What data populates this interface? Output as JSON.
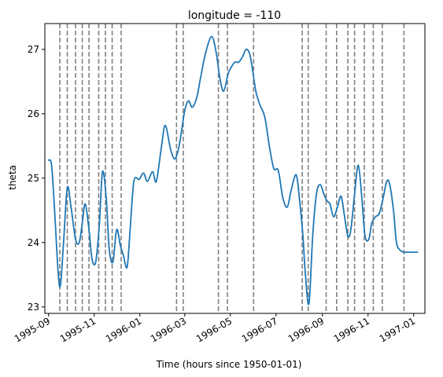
{
  "chart_data": {
    "type": "line",
    "title": "longitude = -110",
    "xlabel": "Time (hours since 1950-01-01)",
    "ylabel": "theta",
    "xlim": [
      "1995-08-27",
      "1997-01-16"
    ],
    "ylim": [
      22.9,
      27.4
    ],
    "grid": false,
    "legend": "none",
    "colors": {
      "line": "#1f77b4",
      "vlines": "#808080"
    },
    "x_ticks": [
      "1995-09",
      "1995-11",
      "1996-01",
      "1996-03",
      "1996-05",
      "1996-07",
      "1996-09",
      "1996-11",
      "1997-01"
    ],
    "x_tick_dates": [
      "1995-09-01",
      "1995-11-01",
      "1996-01-01",
      "1996-03-01",
      "1996-05-01",
      "1996-07-01",
      "1996-09-01",
      "1996-11-01",
      "1997-01-01"
    ],
    "y_ticks": [
      23,
      24,
      25,
      26,
      27
    ],
    "vertical_lines": [
      "1995-09-16",
      "1995-09-26",
      "1995-10-07",
      "1995-10-16",
      "1995-10-25",
      "1995-11-07",
      "1995-11-16",
      "1995-11-25",
      "1995-12-07",
      "1996-02-19",
      "1996-02-28",
      "1996-04-15",
      "1996-04-27",
      "1996-06-01",
      "1996-08-05",
      "1996-08-13",
      "1996-09-06",
      "1996-09-20",
      "1996-10-05",
      "1996-10-14",
      "1996-10-27",
      "1996-11-08",
      "1996-11-20",
      "1996-12-19"
    ],
    "series": [
      {
        "x": [
          "1995-09-01",
          "1995-09-05",
          "1995-09-09",
          "1995-09-14",
          "1995-09-17",
          "1995-09-21",
          "1995-09-26",
          "1995-10-01",
          "1995-10-07",
          "1995-10-12",
          "1995-10-16",
          "1995-10-20",
          "1995-10-25",
          "1995-10-29",
          "1995-11-03",
          "1995-11-08",
          "1995-11-12",
          "1995-11-17",
          "1995-11-21",
          "1995-11-26",
          "1995-12-01",
          "1995-12-06",
          "1995-12-10",
          "1995-12-15",
          "1995-12-19",
          "1995-12-24",
          "1995-12-31",
          "1996-01-06",
          "1996-01-11",
          "1996-01-18",
          "1996-01-23",
          "1996-01-30",
          "1996-02-04",
          "1996-02-11",
          "1996-02-16",
          "1996-02-20",
          "1996-02-24",
          "1996-03-01",
          "1996-03-06",
          "1996-03-11",
          "1996-03-17",
          "1996-03-22",
          "1996-03-29",
          "1996-04-06",
          "1996-04-12",
          "1996-04-17",
          "1996-04-22",
          "1996-04-28",
          "1996-05-02",
          "1996-05-07",
          "1996-05-12",
          "1996-05-17",
          "1996-05-22",
          "1996-05-27",
          "1996-05-31",
          "1996-06-04",
          "1996-06-09",
          "1996-06-16",
          "1996-06-22",
          "1996-06-28",
          "1996-07-04",
          "1996-07-10",
          "1996-07-16",
          "1996-07-21",
          "1996-07-28",
          "1996-08-02",
          "1996-08-06",
          "1996-08-09",
          "1996-08-14",
          "1996-08-19",
          "1996-08-24",
          "1996-08-29",
          "1996-09-03",
          "1996-09-07",
          "1996-09-11",
          "1996-09-16",
          "1996-09-21",
          "1996-09-26",
          "1996-09-30",
          "1996-10-05",
          "1996-10-09",
          "1996-10-14",
          "1996-10-19",
          "1996-10-24",
          "1996-10-28",
          "1996-11-02",
          "1996-11-06",
          "1996-11-11",
          "1996-11-16",
          "1996-11-21",
          "1996-11-26",
          "1996-11-30",
          "1996-12-05",
          "1996-12-09",
          "1996-12-14",
          "1996-12-19",
          "1996-12-23",
          "1996-12-27",
          "1997-01-01",
          "1997-01-06"
        ],
        "y": [
          25.28,
          25.2,
          24.5,
          23.5,
          23.35,
          24.0,
          24.85,
          24.55,
          24.05,
          24.0,
          24.3,
          24.6,
          24.2,
          23.75,
          23.7,
          24.3,
          25.1,
          24.7,
          23.9,
          23.7,
          24.2,
          23.95,
          23.8,
          23.62,
          24.2,
          24.95,
          24.98,
          25.08,
          24.95,
          25.1,
          24.95,
          25.5,
          25.82,
          25.45,
          25.3,
          25.38,
          25.6,
          26.05,
          26.2,
          26.1,
          26.25,
          26.55,
          26.95,
          27.2,
          26.95,
          26.55,
          26.35,
          26.62,
          26.72,
          26.8,
          26.8,
          26.88,
          27.0,
          26.92,
          26.65,
          26.35,
          26.15,
          25.95,
          25.5,
          25.15,
          25.12,
          24.7,
          24.55,
          24.8,
          25.05,
          24.6,
          24.1,
          23.55,
          23.05,
          24.1,
          24.75,
          24.9,
          24.75,
          24.65,
          24.6,
          24.4,
          24.55,
          24.72,
          24.45,
          24.1,
          24.2,
          24.75,
          25.2,
          24.65,
          24.1,
          24.05,
          24.3,
          24.4,
          24.45,
          24.68,
          24.95,
          24.9,
          24.5,
          24.0,
          23.88,
          23.85,
          23.85,
          23.85,
          23.85,
          23.85
        ]
      }
    ]
  }
}
